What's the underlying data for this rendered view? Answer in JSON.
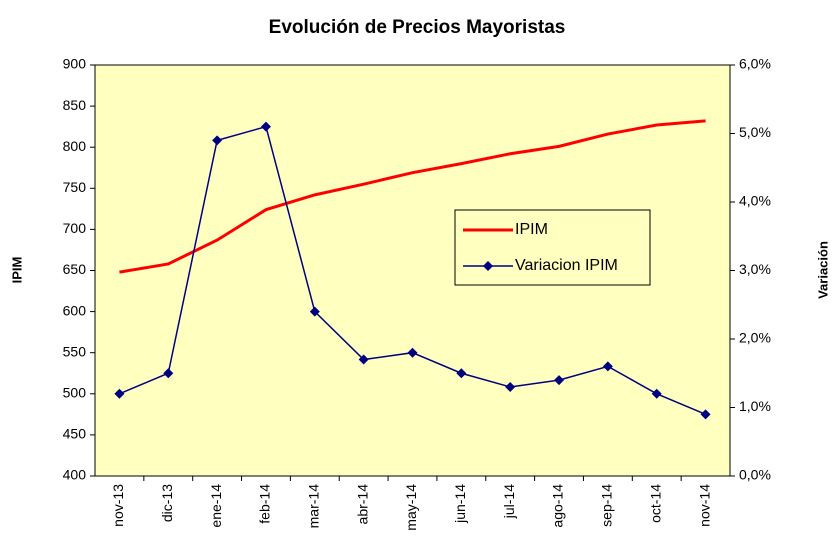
{
  "chart_data": {
    "type": "line",
    "title": "Evolución de Precios Mayoristas",
    "y_label": "IPIM",
    "y2_label": "Variación",
    "categories": [
      "nov-13",
      "dic-13",
      "ene-14",
      "feb-14",
      "mar-14",
      "abr-14",
      "may-14",
      "jun-14",
      "jul-14",
      "ago-14",
      "sep-14",
      "oct-14",
      "nov-14"
    ],
    "series": [
      {
        "name": "IPIM",
        "color": "#ff0000",
        "values": [
          648,
          658,
          687,
          724,
          742,
          755,
          769,
          780,
          792,
          801,
          816,
          827,
          832
        ]
      },
      {
        "name": "Variacion IPIM",
        "color": "#000080",
        "axis": "y2",
        "marker": "diamond",
        "values": [
          1.2,
          1.5,
          4.9,
          5.1,
          2.4,
          1.7,
          1.8,
          1.5,
          1.3,
          1.4,
          1.6,
          1.2,
          0.9
        ]
      }
    ],
    "ylim": [
      400,
      900
    ],
    "yticks": [
      400,
      450,
      500,
      550,
      600,
      650,
      700,
      750,
      800,
      850,
      900
    ],
    "y2lim": [
      0,
      6
    ],
    "y2ticks": [
      {
        "value": 0,
        "label": "0,0%"
      },
      {
        "value": 1,
        "label": "1,0%"
      },
      {
        "value": 2,
        "label": "2,0%"
      },
      {
        "value": 3,
        "label": "3,0%"
      },
      {
        "value": 4,
        "label": "4,0%"
      },
      {
        "value": 5,
        "label": "5,0%"
      },
      {
        "value": 6,
        "label": "6,0%"
      }
    ],
    "legend": "center-right",
    "plot_background": "#ffffc0"
  }
}
